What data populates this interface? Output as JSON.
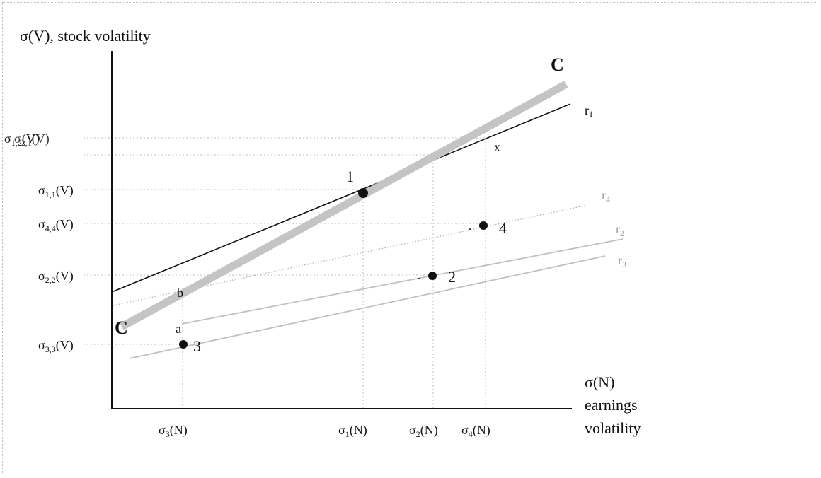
{
  "diagram": {
    "y_axis_title": "σ(V), stock volatility",
    "x_axis_title_lines": [
      "σ(N)",
      "earnings",
      "volatility"
    ],
    "curve_label_start": "C",
    "curve_label_end": "C",
    "point_labels": [
      "1",
      "2",
      "3",
      "4"
    ],
    "marker_labels": {
      "a": "a",
      "b": "b",
      "x": "x"
    },
    "line_labels": {
      "r1": {
        "base": "r",
        "sub": "1"
      },
      "r2": {
        "base": "r",
        "sub": "2"
      },
      "r3": {
        "base": "r",
        "sub": "3"
      },
      "r4": {
        "base": "r",
        "sub": "4"
      }
    },
    "y_ticks": [
      {
        "base": "σ",
        "sub": "1,2",
        "suffix": "(V)"
      },
      {
        "base": "σ",
        "sub": "2,1",
        "suffix": "(V)"
      },
      {
        "base": "σ",
        "sub": "1,1",
        "suffix": "(V)"
      },
      {
        "base": "σ",
        "sub": "4,4",
        "suffix": "(V)"
      },
      {
        "base": "σ",
        "sub": "2,2",
        "suffix": "(V)"
      },
      {
        "base": "σ",
        "sub": "3,3",
        "suffix": "(V)"
      }
    ],
    "x_ticks": [
      {
        "base": "σ",
        "sub": "3",
        "suffix": "(N)"
      },
      {
        "base": "σ",
        "sub": "1",
        "suffix": "(N)"
      },
      {
        "base": "σ",
        "sub": "2",
        "suffix": "(N)"
      },
      {
        "base": "σ",
        "sub": "4",
        "suffix": "(N)"
      }
    ]
  }
}
